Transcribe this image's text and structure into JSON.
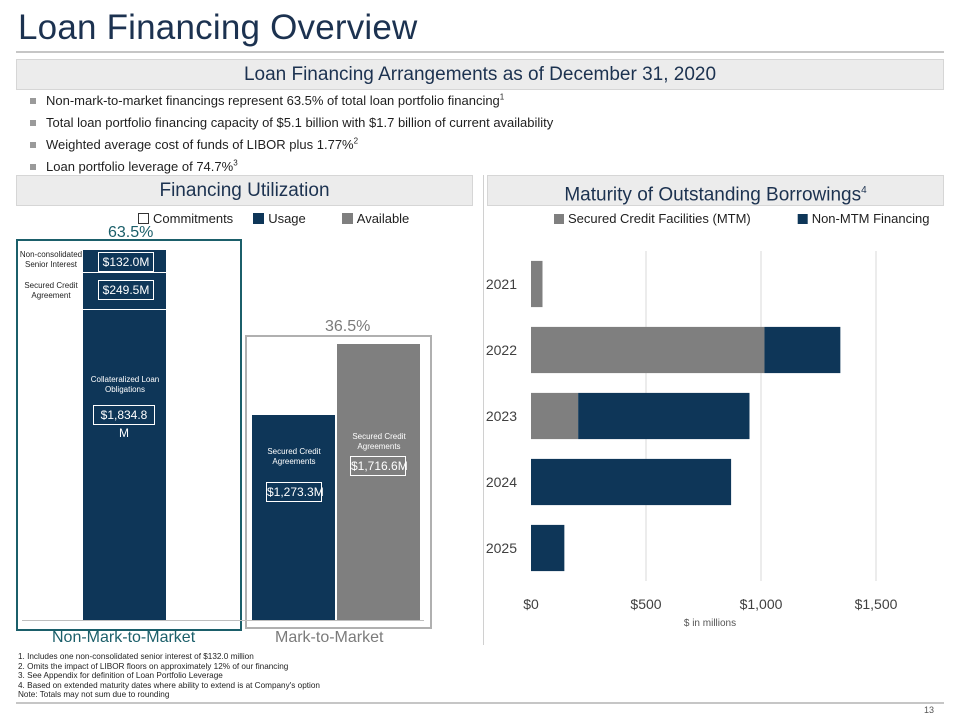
{
  "page": {
    "title": "Loan Financing Overview",
    "page_number": "13"
  },
  "arrangements": {
    "heading": "Loan Financing Arrangements as of December 31, 2020",
    "bullets": [
      {
        "text": "Non-mark-to-market financings represent 63.5% of total loan portfolio financing",
        "sup": "1"
      },
      {
        "text": "Total loan portfolio financing capacity of $5.1 billion with $1.7 billion of current availability",
        "sup": ""
      },
      {
        "text": "Weighted average cost of funds of LIBOR plus 1.77%",
        "sup": "2"
      },
      {
        "text": "Loan portfolio leverage of 74.7%",
        "sup": "3"
      }
    ]
  },
  "utilization": {
    "heading": "Financing Utilization",
    "legend": [
      {
        "label": "Commitments",
        "color": "#ffffff"
      },
      {
        "label": "Usage",
        "color": "#0e3658"
      },
      {
        "label": "Available",
        "color": "#7f7f7f"
      }
    ],
    "nmtm_pct": "63.5%",
    "mtm_pct": "36.5%",
    "nmtm_label": "Non-Mark-to-Market",
    "mtm_label": "Mark-to-Market",
    "side_labels": {
      "senior_interest": "Non-consolidated Senior Interest",
      "secured_credit": "Secured Credit Agreement"
    },
    "bar_labels": {
      "clo": "Collateralized Loan Obligations",
      "sca_usage": "Secured Credit Agreements",
      "sca_available": "Secured Credit Agreements"
    },
    "values": {
      "senior_interest": "$132.0M",
      "secured_credit": "$249.5M",
      "clo": "$1,834.8 M",
      "sca_usage": "$1,273.3M",
      "sca_available": "$1,716.6M"
    }
  },
  "maturity": {
    "heading": "Maturity of Outstanding Borrowings",
    "heading_sup": "4"
  },
  "chart_data": {
    "type": "bar",
    "orientation": "horizontal",
    "stacked": true,
    "title": "Maturity of Outstanding Borrowings",
    "categories": [
      "2021",
      "2022",
      "2023",
      "2024",
      "2025"
    ],
    "series": [
      {
        "name": "Secured Credit Facilities (MTM)",
        "color": "#7f7f7f",
        "values": [
          50,
          1015,
          205,
          0,
          0
        ]
      },
      {
        "name": "Non-MTM Financing",
        "color": "#0e3658",
        "values": [
          0,
          330,
          745,
          870,
          145
        ]
      }
    ],
    "xlabel": "$ in millions",
    "xlim": [
      0,
      1600
    ],
    "xticks": [
      {
        "value": 0,
        "label": "$0"
      },
      {
        "value": 500,
        "label": "$500"
      },
      {
        "value": 1000,
        "label": "$1,000"
      },
      {
        "value": 1500,
        "label": "$1,500"
      }
    ],
    "grid": true,
    "legend": "top"
  },
  "footnotes": [
    "1. Includes one non-consolidated senior interest of $132.0 million",
    "2. Omits the impact of LIBOR floors on approximately 12% of our financing",
    "3. See Appendix for definition of Loan Portfolio Leverage",
    "4. Based on extended maturity dates where ability to extend is at Company's option",
    "Note: Totals may not sum due to rounding"
  ]
}
